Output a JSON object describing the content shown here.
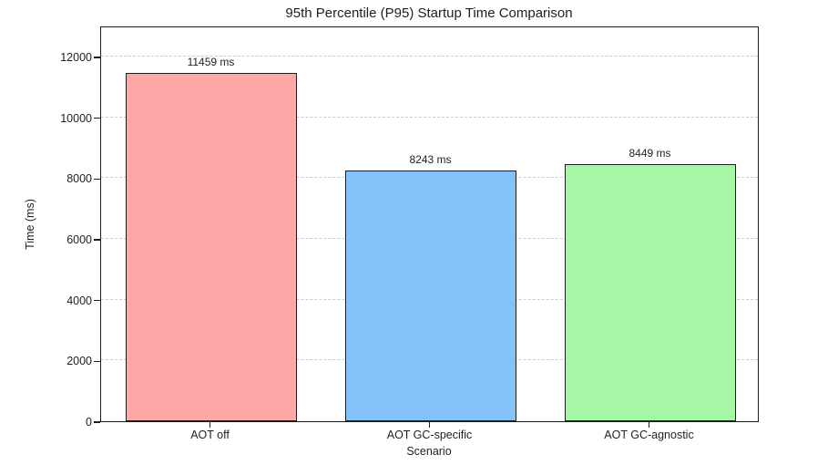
{
  "chart_data": {
    "type": "bar",
    "title": "95th Percentile (P95) Startup Time Comparison",
    "xlabel": "Scenario",
    "ylabel": "Time (ms)",
    "categories": [
      "AOT off",
      "AOT GC-specific",
      "AOT GC-agnostic"
    ],
    "values": [
      11459,
      8243,
      8449
    ],
    "value_labels": [
      "11459 ms",
      "8243 ms",
      "8449 ms"
    ],
    "bar_colors": [
      "#ffa8a8",
      "#85c2f7",
      "#a5f7a5"
    ],
    "bar_edge_color": "#1c1c1c",
    "ylim": [
      0,
      13020
    ],
    "yticks": [
      0,
      2000,
      4000,
      6000,
      8000,
      10000,
      12000
    ],
    "grid": {
      "axis": "y",
      "style": "dashed",
      "color": "#cccccc"
    },
    "legend": "none",
    "background": "#ffffff"
  }
}
